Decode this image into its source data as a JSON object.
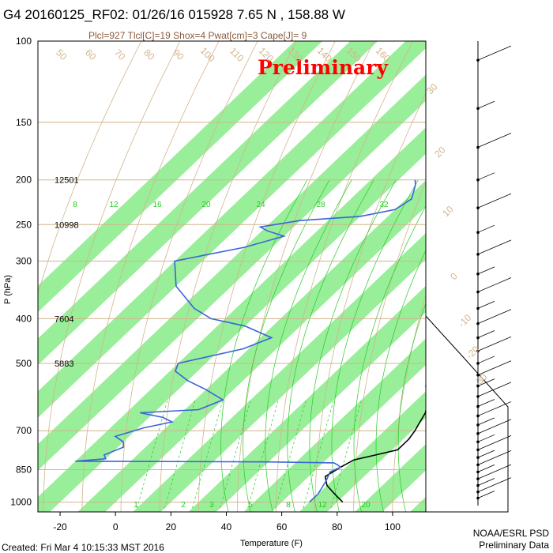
{
  "title": "G4 20160125_RF02: 01/26/16 015928   7.65 N , 158.88 W",
  "subtitle": "Plcl=927 Tlcl[C]=19 Shox=4 Pwat[cm]=3 Cape[J]= 9",
  "watermark": "Preliminary",
  "created": "Created: Fri Mar  4 10:15:33 MST 2016",
  "credit_line1": "NOAA/ESRL PSD",
  "credit_line2": "Preliminary Data",
  "colors": {
    "band": "#99ee99",
    "temperature": "#000000",
    "dewpoint": "#3a64d8",
    "parcel": "#ff0000",
    "dry_adiabat": "#d2b48c",
    "moist_adiabat": "#22cc22",
    "mixing_ratio": "#22cc22",
    "isobar": "#d2b48c"
  },
  "chart_data": {
    "type": "line",
    "subtype": "skew-T log-P sounding",
    "xlabel": "Temperature (F)",
    "ylabel": "P (hPa)",
    "xlim": [
      -28,
      112
    ],
    "ylim": [
      1050,
      100
    ],
    "y_scale": "log",
    "x_ticks": [
      -20,
      0,
      20,
      40,
      60,
      80,
      100
    ],
    "y_ticks": [
      100,
      150,
      200,
      250,
      300,
      400,
      500,
      700,
      850,
      1000
    ],
    "isobar_lines": [
      150,
      200,
      250,
      300,
      400,
      500,
      700,
      850,
      1000
    ],
    "height_labels": [
      {
        "p": 200,
        "text": "12501"
      },
      {
        "p": 250,
        "text": "10998"
      },
      {
        "p": 400,
        "text": "7604"
      },
      {
        "p": 500,
        "text": "5883"
      }
    ],
    "mixing_ratio_labels": [
      "1",
      "2",
      "3",
      "5",
      "8",
      "12",
      "20"
    ],
    "upper_temp_labels": [
      "8",
      "12",
      "16",
      "20",
      "24",
      "28",
      "32"
    ],
    "dry_adiabat_labels": [
      "50",
      "60",
      "70",
      "80",
      "90",
      "100",
      "110",
      "120",
      "130",
      "140",
      "150",
      "160"
    ],
    "right_labels": [
      "30",
      "20",
      "10",
      "0",
      "-10",
      "-20",
      "-30"
    ],
    "series": [
      {
        "name": "temperature",
        "points": [
          [
            82,
            1000
          ],
          [
            76,
            960
          ],
          [
            70,
            920
          ],
          [
            66,
            880
          ],
          [
            68,
            840
          ],
          [
            70,
            810
          ],
          [
            76,
            790
          ],
          [
            82,
            770
          ],
          [
            82,
            730
          ],
          [
            81,
            700
          ],
          [
            80,
            680
          ],
          [
            78,
            640
          ],
          [
            74,
            600
          ],
          [
            68,
            560
          ],
          [
            64,
            520
          ],
          [
            62,
            500
          ],
          [
            60,
            470
          ],
          [
            58,
            440
          ],
          [
            56,
            420
          ],
          [
            58,
            400
          ],
          [
            56,
            380
          ],
          [
            52,
            350
          ],
          [
            48,
            320
          ],
          [
            44,
            300
          ],
          [
            42,
            280
          ],
          [
            38,
            260
          ],
          [
            36,
            240
          ],
          [
            32,
            220
          ],
          [
            28,
            200
          ],
          [
            24,
            185
          ],
          [
            22,
            175
          ]
        ]
      },
      {
        "name": "dewpoint",
        "points": [
          [
            70,
            1000
          ],
          [
            70,
            960
          ],
          [
            68,
            900
          ],
          [
            66,
            860
          ],
          [
            68,
            840
          ],
          [
            66,
            830
          ],
          [
            64,
            822
          ],
          [
            40,
            818
          ],
          [
            -30,
            815
          ],
          [
            -20,
            805
          ],
          [
            -22,
            790
          ],
          [
            -18,
            760
          ],
          [
            -20,
            740
          ],
          [
            -25,
            720
          ],
          [
            -18,
            690
          ],
          [
            -10,
            670
          ],
          [
            -15,
            655
          ],
          [
            -25,
            640
          ],
          [
            -5,
            630
          ],
          [
            0,
            600
          ],
          [
            -10,
            570
          ],
          [
            -20,
            545
          ],
          [
            -28,
            520
          ],
          [
            -30,
            500
          ],
          [
            -12,
            465
          ],
          [
            -6,
            440
          ],
          [
            -20,
            415
          ],
          [
            -35,
            400
          ],
          [
            -45,
            380
          ],
          [
            -60,
            340
          ],
          [
            -70,
            300
          ],
          [
            -50,
            280
          ],
          [
            -40,
            265
          ],
          [
            -48,
            258
          ],
          [
            -52,
            253
          ],
          [
            -40,
            245
          ],
          [
            -20,
            240
          ],
          [
            -10,
            232
          ],
          [
            -8,
            220
          ],
          [
            -12,
            205
          ],
          [
            -14,
            200
          ]
        ]
      },
      {
        "name": "parcel",
        "points": [
          [
            58,
            410
          ],
          [
            60,
            430
          ],
          [
            61,
            445
          ]
        ]
      }
    ]
  }
}
